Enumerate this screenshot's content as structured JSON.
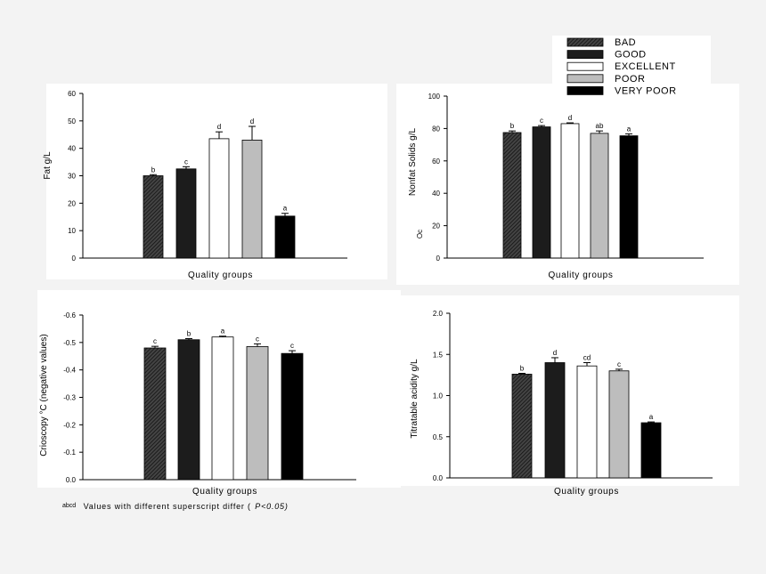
{
  "legend": {
    "items": [
      {
        "label": "BAD",
        "fill": "hatch"
      },
      {
        "label": "GOOD",
        "fill": "#1c1c1c"
      },
      {
        "label": "EXCELLENT",
        "fill": "#ffffff"
      },
      {
        "label": "POOR",
        "fill": "#bdbdbd"
      },
      {
        "label": "VERY POOR",
        "fill": "#000000"
      }
    ]
  },
  "footnote": {
    "superscript": "abcd",
    "text": "Values with different superscript differ (",
    "p": "P<0.05)"
  },
  "chart_data": [
    {
      "type": "bar",
      "title": "",
      "ylabel": "Fat g/L",
      "xlabel": "Quality groups",
      "categories": [
        "BAD",
        "GOOD",
        "EXCELLENT",
        "POOR",
        "VERY POOR"
      ],
      "values": [
        30,
        32.5,
        43.5,
        43,
        15.3
      ],
      "errors": [
        0.4,
        0.8,
        2.5,
        5,
        1
      ],
      "letters": [
        "b",
        "c",
        "d",
        "d",
        "a"
      ],
      "ylim": [
        0,
        60
      ],
      "yticks": [
        "0",
        "10",
        "20",
        "30",
        "40",
        "50",
        "60"
      ],
      "yticks_v": [
        0,
        10,
        20,
        30,
        40,
        50,
        60
      ]
    },
    {
      "type": "bar",
      "title": "",
      "ylabel": "Nonfat Solids g/L",
      "xlabel": "Quality groups",
      "categories": [
        "BAD",
        "GOOD",
        "EXCELLENT",
        "POOR",
        "VERY POOR"
      ],
      "values": [
        77.5,
        81,
        83,
        77,
        75.5
      ],
      "errors": [
        1,
        0.8,
        0.5,
        1.5,
        1.2
      ],
      "letters": [
        "b",
        "c",
        "d",
        "ab",
        "a"
      ],
      "ylim": [
        0,
        100
      ],
      "yticks": [
        "0",
        "20",
        "40",
        "60",
        "80",
        "100"
      ],
      "yticks_v": [
        0,
        20,
        40,
        60,
        80,
        100
      ],
      "extra_label": "Oc"
    },
    {
      "type": "bar",
      "title": "",
      "ylabel": "Crioscopy °C (negative values)",
      "xlabel": "Quality groups",
      "categories": [
        "BAD",
        "GOOD",
        "EXCELLENT",
        "POOR",
        "VERY POOR"
      ],
      "values": [
        0.48,
        0.51,
        0.52,
        0.485,
        0.46
      ],
      "errors": [
        0.006,
        0.004,
        0.003,
        0.01,
        0.01
      ],
      "letters": [
        "c",
        "b",
        "a",
        "c",
        "c"
      ],
      "ylim": [
        0,
        0.6
      ],
      "yticks": [
        "0.0",
        "-0.1",
        "-0.2",
        "-0.3",
        "-0.4",
        "-0.5",
        "-0.6"
      ],
      "yticks_v": [
        0,
        0.1,
        0.2,
        0.3,
        0.4,
        0.5,
        0.6
      ]
    },
    {
      "type": "bar",
      "title": "",
      "ylabel": "Titratable acidity g/L",
      "xlabel": "Quality groups",
      "categories": [
        "BAD",
        "GOOD",
        "EXCELLENT",
        "POOR",
        "VERY POOR"
      ],
      "values": [
        1.26,
        1.4,
        1.36,
        1.3,
        0.67
      ],
      "errors": [
        0.01,
        0.06,
        0.04,
        0.02,
        0.01
      ],
      "letters": [
        "b",
        "d",
        "cd",
        "c",
        "a"
      ],
      "ylim": [
        0,
        2
      ],
      "yticks": [
        "0.0",
        "0.5",
        "1.0",
        "1.5",
        "2.0"
      ],
      "yticks_v": [
        0,
        0.5,
        1,
        1.5,
        2
      ]
    }
  ]
}
